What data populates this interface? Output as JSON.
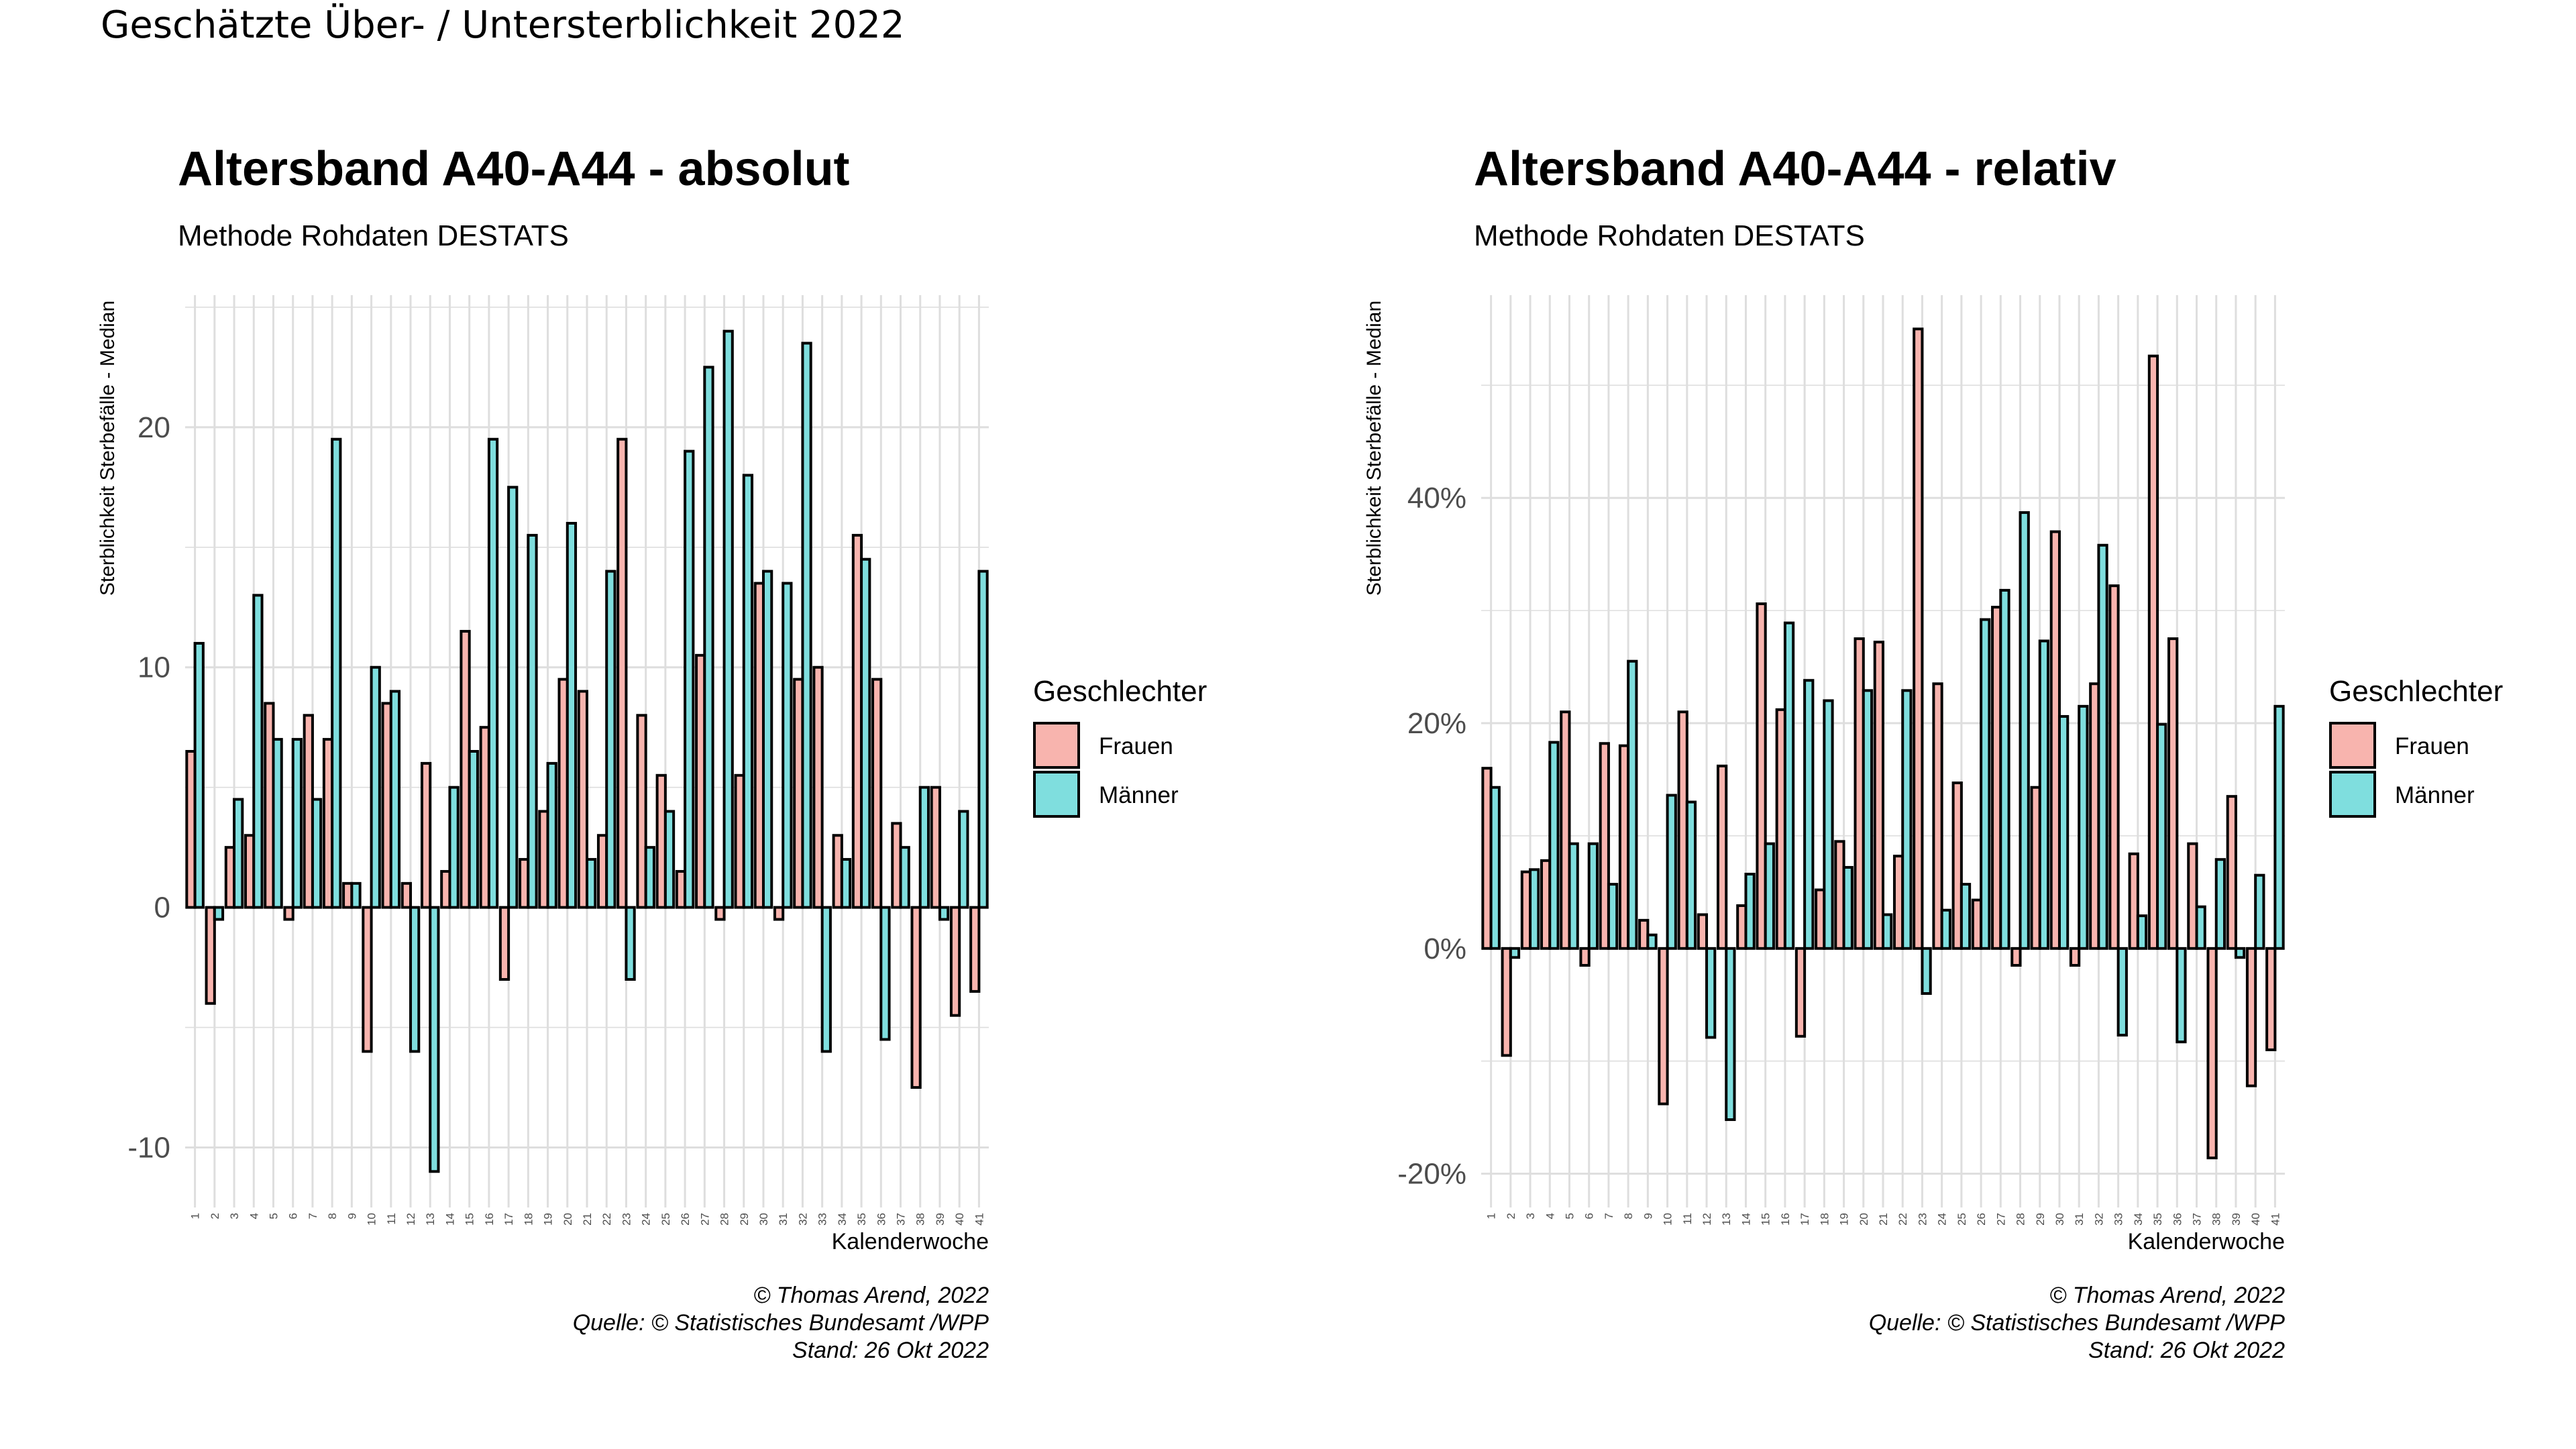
{
  "page": {
    "title": "Geschätzte Über- / Untersterblichkeit 2022"
  },
  "colors": {
    "frauen": "#F8B4AE",
    "maenner": "#7FDEDE",
    "grid": "#DEDEDE",
    "text": "#4D4D4D"
  },
  "legend": {
    "title": "Geschlechter",
    "items": [
      "Frauen",
      "Männer"
    ]
  },
  "charts": [
    {
      "title": "Altersband A40-A44 - absolut",
      "subtitle": "Methode Rohdaten DESTATS",
      "caption": [
        "© Thomas Arend, 2022",
        "Quelle: © Statistisches Bundesamt /WPP",
        "Stand: 26 Okt 2022"
      ]
    },
    {
      "title": "Altersband A40-A44 - relativ",
      "subtitle": "Methode Rohdaten DESTATS",
      "caption": [
        "© Thomas Arend, 2022",
        "Quelle: © Statistisches Bundesamt /WPP",
        "Stand: 26 Okt 2022"
      ]
    }
  ],
  "chart_data": [
    {
      "type": "bar",
      "title": "Altersband A40-A44 - absolut",
      "subtitle": "Methode Rohdaten DESTATS",
      "xlabel": "Kalenderwoche",
      "ylabel": "Sterblichkeit Sterbefälle - Median",
      "ylim": [
        -12.5,
        25.5
      ],
      "yticks": [
        -10,
        0,
        10,
        20
      ],
      "ytick_labels": [
        "-10",
        "0",
        "10",
        "20"
      ],
      "grid": true,
      "legend_position": "right",
      "categories": [
        "1",
        "2",
        "3",
        "4",
        "5",
        "6",
        "7",
        "8",
        "9",
        "10",
        "11",
        "12",
        "13",
        "14",
        "15",
        "16",
        "17",
        "18",
        "19",
        "20",
        "21",
        "22",
        "23",
        "24",
        "25",
        "26",
        "27",
        "28",
        "29",
        "30",
        "31",
        "32",
        "33",
        "34",
        "35",
        "36",
        "37",
        "38",
        "39",
        "40",
        "41"
      ],
      "series": [
        {
          "name": "Frauen",
          "values": [
            6.5,
            -4,
            2.5,
            3,
            8.5,
            -0.5,
            8,
            7,
            1,
            -6,
            8.5,
            1,
            6,
            1.5,
            11.5,
            7.5,
            -3,
            2,
            4,
            9.5,
            9,
            3,
            19.5,
            8,
            5.5,
            1.5,
            10.5,
            -0.5,
            5.5,
            13.5,
            -0.5,
            9.5,
            10,
            3,
            15.5,
            9.5,
            3.5,
            -7.5,
            5,
            -4.5,
            -3.5
          ]
        },
        {
          "name": "Männer",
          "values": [
            11,
            -0.5,
            4.5,
            13,
            7,
            7,
            4.5,
            19.5,
            1,
            10,
            9,
            -6,
            -11,
            5,
            6.5,
            19.5,
            17.5,
            15.5,
            6,
            16,
            2,
            14,
            -3,
            2.5,
            4,
            19,
            22.5,
            24,
            18,
            14,
            13.5,
            23.5,
            -6,
            2,
            14.5,
            -5.5,
            2.5,
            5,
            -0.5,
            4,
            14
          ]
        }
      ]
    },
    {
      "type": "bar",
      "title": "Altersband A40-A44 - relativ",
      "subtitle": "Methode Rohdaten DESTATS",
      "xlabel": "Kalenderwoche",
      "ylabel": "Sterblichkeit Sterbefälle - Median",
      "ylim": [
        -23,
        58
      ],
      "yticks": [
        -20,
        0,
        20,
        40
      ],
      "ytick_labels": [
        "-20%",
        "0%",
        "20%",
        "40%"
      ],
      "grid": true,
      "legend_position": "right",
      "categories": [
        "1",
        "2",
        "3",
        "4",
        "5",
        "6",
        "7",
        "8",
        "9",
        "10",
        "11",
        "12",
        "13",
        "14",
        "15",
        "16",
        "17",
        "18",
        "19",
        "20",
        "21",
        "22",
        "23",
        "24",
        "25",
        "26",
        "27",
        "28",
        "29",
        "30",
        "31",
        "32",
        "33",
        "34",
        "35",
        "36",
        "37",
        "38",
        "39",
        "40",
        "41"
      ],
      "series": [
        {
          "name": "Frauen",
          "values": [
            16,
            -9.5,
            6.8,
            7.8,
            21,
            -1.5,
            18.2,
            18,
            2.5,
            -13.8,
            21,
            3,
            16.2,
            3.8,
            30.6,
            21.2,
            -7.8,
            5.2,
            9.5,
            27.5,
            27.2,
            8.2,
            55,
            23.5,
            14.7,
            4.3,
            30.3,
            -1.5,
            14.3,
            37,
            -1.5,
            23.5,
            32.2,
            8.4,
            52.6,
            27.5,
            9.3,
            -18.6,
            13.5,
            -12.2,
            -9
          ]
        },
        {
          "name": "Männer",
          "values": [
            14.3,
            -0.8,
            7,
            18.3,
            9.3,
            9.3,
            5.7,
            25.5,
            1.2,
            13.6,
            13,
            -7.9,
            -15.2,
            6.6,
            9.3,
            28.9,
            23.8,
            22,
            7.2,
            22.9,
            3,
            22.9,
            -4,
            3.4,
            5.7,
            29.2,
            31.8,
            38.7,
            27.3,
            20.6,
            21.5,
            35.8,
            -7.7,
            2.9,
            19.9,
            -8.3,
            3.7,
            7.9,
            -0.8,
            6.5,
            21.5
          ]
        }
      ]
    }
  ]
}
